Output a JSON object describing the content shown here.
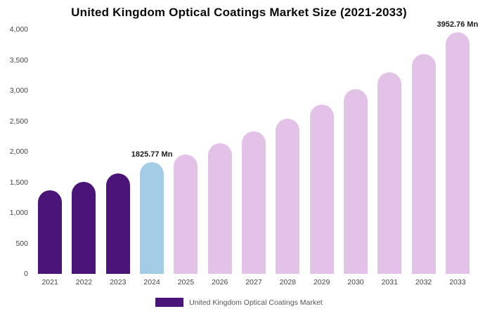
{
  "title": "United Kingdom Optical Coatings Market Size (2021-2033)",
  "legend": {
    "label": "United Kingdom Optical Coatings Market",
    "swatch_color": "#4a1478"
  },
  "colors": {
    "historical_bar": "#4a1478",
    "current_year_bar": "#a3cde6",
    "forecast_bar": "#e3c2e8",
    "background": "#ffffff"
  },
  "chart_data": {
    "type": "bar",
    "title": "United Kingdom Optical Coatings Market Size (2021-2033)",
    "xlabel": "",
    "ylabel": "",
    "categories": [
      "2021",
      "2022",
      "2023",
      "2024",
      "2025",
      "2026",
      "2027",
      "2028",
      "2029",
      "2030",
      "2031",
      "2032",
      "2033"
    ],
    "values": [
      1370,
      1505,
      1640,
      1825.77,
      1950,
      2140,
      2330,
      2540,
      2770,
      3020,
      3300,
      3600,
      3952.76
    ],
    "bar_colors": [
      "#4a1478",
      "#4a1478",
      "#4a1478",
      "#a3cde6",
      "#e3c2e8",
      "#e3c2e8",
      "#e3c2e8",
      "#e3c2e8",
      "#e3c2e8",
      "#e3c2e8",
      "#e3c2e8",
      "#e3c2e8",
      "#e3c2e8"
    ],
    "ylim": [
      0,
      4000
    ],
    "yticks": [
      0,
      500,
      1000,
      1500,
      2000,
      2500,
      3000,
      3500,
      4000
    ],
    "ytick_labels": [
      "0",
      "500",
      "1,000",
      "1,500",
      "2,000",
      "2,500",
      "3,000",
      "3,500",
      "4,000"
    ],
    "annotations": [
      {
        "index": 3,
        "text": "1825.77 Mn"
      },
      {
        "index": 12,
        "text": "3952.76 Mn"
      }
    ],
    "grid": false,
    "legend_position": "bottom",
    "legend_entries": [
      "United Kingdom Optical Coatings Market"
    ]
  }
}
